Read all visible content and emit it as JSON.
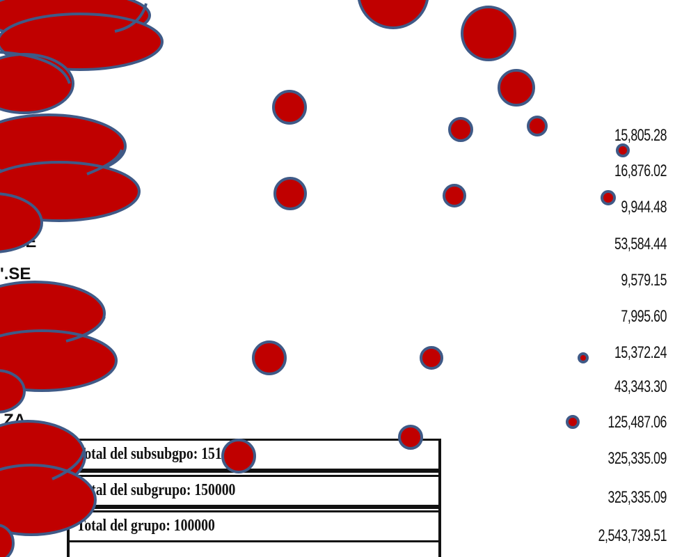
{
  "document": {
    "amounts": [
      "15,805.28",
      "16,876.02",
      "9,944.48",
      "53,584.44",
      "9,579.15",
      "7,995.60",
      "15,372.24",
      "43,343.30",
      "125,487.06",
      "325,335.09",
      "325,335.09",
      "2,543,739.51"
    ],
    "left_fragments": [
      "'.É",
      "'.SE",
      "ZA"
    ],
    "totals": [
      "Total del subsubgpo: 151000",
      "Total del subgrupo: 150000",
      "Total del grupo: 100000"
    ]
  },
  "overlay": {
    "fill_color": "#C00000",
    "stroke_color": "#3F5A87"
  }
}
